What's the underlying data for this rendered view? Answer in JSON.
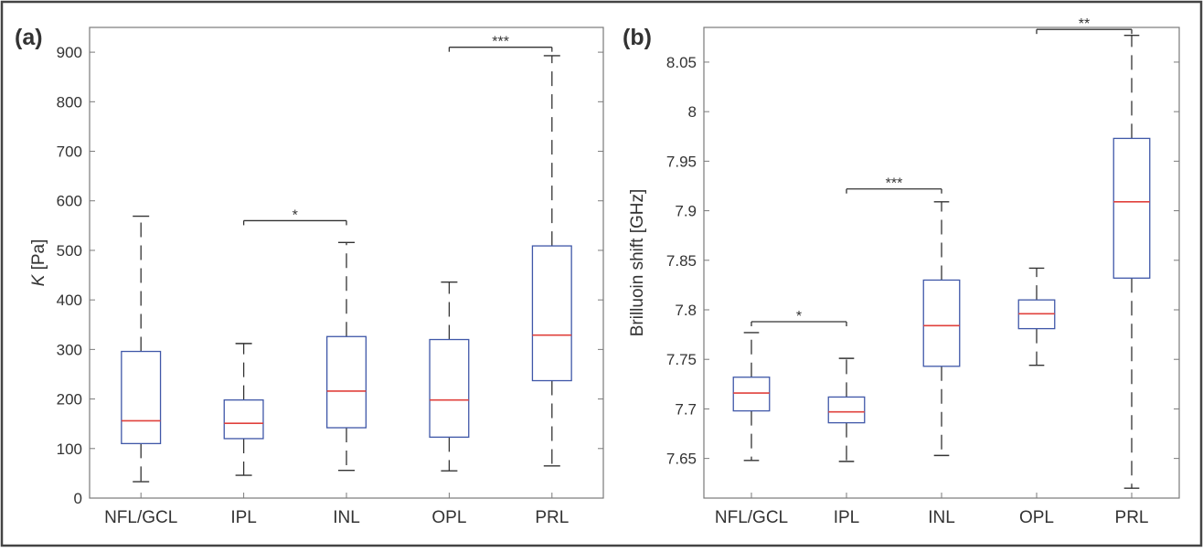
{
  "colors": {
    "box": "#3f57a8",
    "median": "#e0413c",
    "whisker": "#333333",
    "axis": "#7a7a7a",
    "border": "#444444"
  },
  "chart_data": [
    {
      "type": "box",
      "panel_label": "(a)",
      "ylabel_symbol": "K",
      "ylabel_unit": " [Pa]",
      "ylim": [
        0,
        950
      ],
      "yticks": [
        0,
        100,
        200,
        300,
        400,
        500,
        600,
        700,
        800,
        900
      ],
      "categories": [
        "NFL/GCL",
        "IPL",
        "INL",
        "OPL",
        "PRL"
      ],
      "boxes": [
        {
          "min": 33,
          "q1": 110,
          "median": 156,
          "q3": 296,
          "max": 569
        },
        {
          "min": 46,
          "q1": 120,
          "median": 151,
          "q3": 198,
          "max": 312
        },
        {
          "min": 56,
          "q1": 142,
          "median": 216,
          "q3": 326,
          "max": 516
        },
        {
          "min": 55,
          "q1": 123,
          "median": 198,
          "q3": 320,
          "max": 436
        },
        {
          "min": 65,
          "q1": 237,
          "median": 329,
          "q3": 509,
          "max": 893
        }
      ],
      "significance": [
        {
          "from": 1,
          "to": 2,
          "label": "*",
          "y": 560
        },
        {
          "from": 3,
          "to": 4,
          "label": "***",
          "y": 910
        }
      ]
    },
    {
      "type": "box",
      "panel_label": "(b)",
      "ylabel_symbol": "",
      "ylabel_unit": "Brilluoin shift [GHz]",
      "ylim": [
        7.61,
        8.085
      ],
      "yticks": [
        7.65,
        7.7,
        7.75,
        7.8,
        7.85,
        7.9,
        7.95,
        8,
        8.05
      ],
      "ytick_labels": [
        "7.65",
        "7.7",
        "7.75",
        "7.8",
        "7.85",
        "7.9",
        "7.95",
        "8",
        "8.05"
      ],
      "categories": [
        "NFL/GCL",
        "IPL",
        "INL",
        "OPL",
        "PRL"
      ],
      "boxes": [
        {
          "min": 7.648,
          "q1": 7.698,
          "median": 7.716,
          "q3": 7.732,
          "max": 7.777
        },
        {
          "min": 7.647,
          "q1": 7.686,
          "median": 7.697,
          "q3": 7.712,
          "max": 7.751
        },
        {
          "min": 7.653,
          "q1": 7.743,
          "median": 7.784,
          "q3": 7.83,
          "max": 7.909
        },
        {
          "min": 7.744,
          "q1": 7.781,
          "median": 7.796,
          "q3": 7.81,
          "max": 7.842
        },
        {
          "min": 7.62,
          "q1": 7.832,
          "median": 7.909,
          "q3": 7.973,
          "max": 8.077
        }
      ],
      "significance": [
        {
          "from": 0,
          "to": 1,
          "label": "*",
          "y": 7.788
        },
        {
          "from": 1,
          "to": 2,
          "label": "***",
          "y": 7.922
        },
        {
          "from": 3,
          "to": 4,
          "label": "**",
          "y": 8.083
        }
      ]
    }
  ]
}
